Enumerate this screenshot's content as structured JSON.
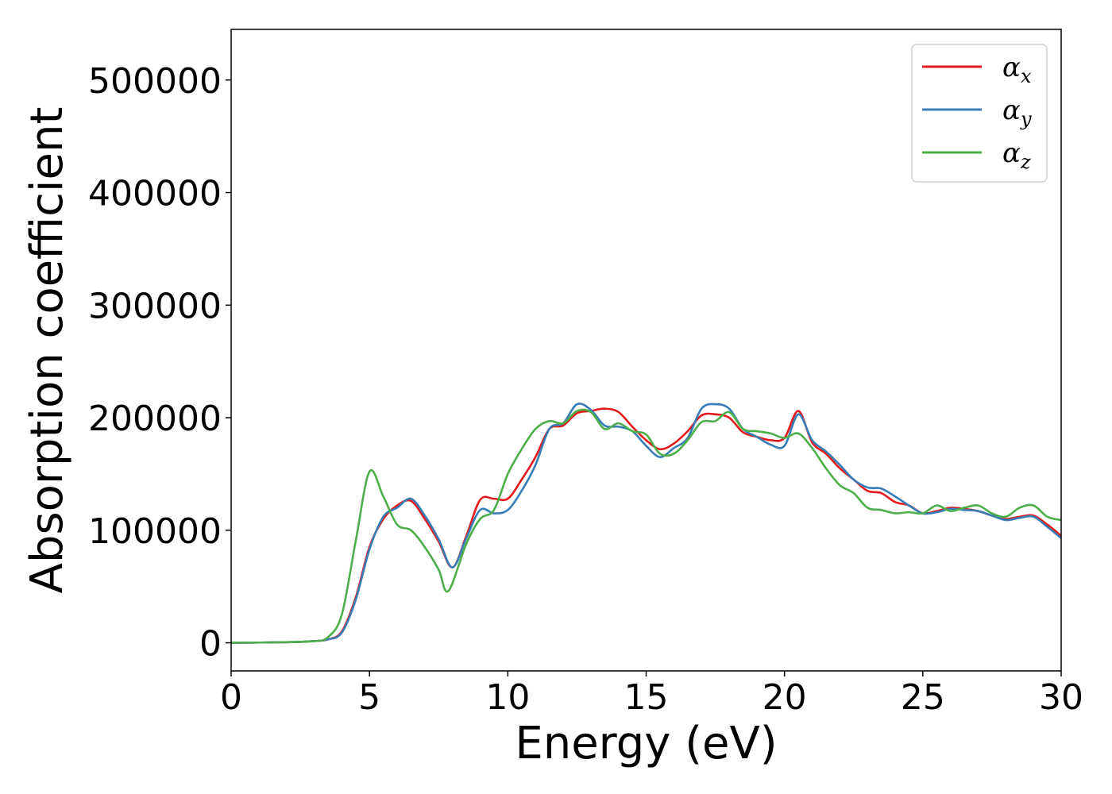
{
  "chart_data": {
    "type": "line",
    "xlabel": "Energy (eV)",
    "ylabel": "Absorption coefficient",
    "xlim": [
      0,
      30
    ],
    "ylim": [
      -25000,
      545000
    ],
    "xticks": [
      0,
      5,
      10,
      15,
      20,
      25,
      30
    ],
    "xtick_labels": [
      "0",
      "5",
      "10",
      "15",
      "20",
      "25",
      "30"
    ],
    "yticks": [
      0,
      100000,
      200000,
      300000,
      400000,
      500000
    ],
    "ytick_labels": [
      "0",
      "100000",
      "200000",
      "300000",
      "400000",
      "500000"
    ],
    "grid": false,
    "legend": {
      "position": "top-right"
    },
    "series": [
      {
        "name": "α",
        "subscript": "x",
        "color": "#e41a1c",
        "x": [
          0,
          2,
          3,
          3.5,
          4.0,
          4.5,
          5.0,
          5.5,
          6.0,
          6.5,
          7.0,
          7.5,
          8.0,
          8.5,
          9.0,
          9.5,
          10.0,
          10.5,
          11.0,
          11.5,
          12.0,
          12.5,
          13.0,
          13.5,
          14.0,
          14.5,
          15.0,
          15.5,
          16.0,
          16.5,
          17.0,
          17.5,
          18.0,
          18.5,
          19.0,
          19.5,
          20.0,
          20.5,
          21.0,
          21.5,
          22.0,
          22.5,
          23.0,
          23.5,
          24.0,
          24.5,
          25.0,
          25.5,
          26.0,
          26.5,
          27.0,
          27.5,
          28.0,
          28.5,
          29.0,
          29.5,
          30.0
        ],
        "y": [
          0,
          500,
          1500,
          3000,
          10000,
          40000,
          85000,
          110000,
          122000,
          126000,
          110000,
          90000,
          67000,
          95000,
          127000,
          128000,
          128000,
          145000,
          165000,
          190000,
          193000,
          204000,
          206000,
          208000,
          205000,
          192000,
          180000,
          172000,
          177000,
          188000,
          202000,
          203000,
          200000,
          187000,
          183000,
          180000,
          182000,
          206000,
          178000,
          168000,
          155000,
          145000,
          135000,
          133000,
          125000,
          122000,
          115000,
          117000,
          120000,
          119000,
          117000,
          113000,
          110000,
          112000,
          113000,
          105000,
          95000
        ]
      },
      {
        "name": "α",
        "subscript": "y",
        "color": "#377eb8",
        "x": [
          0,
          2,
          3,
          3.5,
          4.0,
          4.5,
          5.0,
          5.5,
          6.0,
          6.5,
          7.0,
          7.5,
          8.0,
          8.5,
          9.0,
          9.5,
          10.0,
          10.5,
          11.0,
          11.5,
          12.0,
          12.5,
          13.0,
          13.5,
          14.0,
          14.5,
          15.0,
          15.5,
          16.0,
          16.5,
          17.0,
          17.5,
          18.0,
          18.5,
          19.0,
          19.5,
          20.0,
          20.5,
          21.0,
          21.5,
          22.0,
          22.5,
          23.0,
          23.5,
          24.0,
          24.5,
          25.0,
          25.5,
          26.0,
          26.5,
          27.0,
          27.5,
          28.0,
          28.5,
          29.0,
          29.5,
          30.0
        ],
        "y": [
          0,
          500,
          1500,
          3000,
          9000,
          38000,
          83000,
          112000,
          120000,
          128000,
          113000,
          92000,
          67000,
          93000,
          118000,
          115000,
          118000,
          135000,
          158000,
          190000,
          195000,
          212000,
          207000,
          193000,
          192000,
          188000,
          175000,
          165000,
          173000,
          182000,
          208000,
          212000,
          208000,
          190000,
          183000,
          176000,
          175000,
          203000,
          180000,
          170000,
          158000,
          145000,
          138000,
          137000,
          130000,
          122000,
          115000,
          116000,
          119000,
          118000,
          117000,
          113000,
          109000,
          111000,
          112000,
          103000,
          93000
        ]
      },
      {
        "name": "α",
        "subscript": "z",
        "color": "#4daf4a",
        "x": [
          0,
          2,
          3,
          3.5,
          4.0,
          4.5,
          5.0,
          5.5,
          6.0,
          6.5,
          7.0,
          7.5,
          7.85,
          8.5,
          9.0,
          9.5,
          10.0,
          10.5,
          11.0,
          11.5,
          12.0,
          12.5,
          13.0,
          13.5,
          14.0,
          14.5,
          15.0,
          15.5,
          16.0,
          16.5,
          17.0,
          17.5,
          18.0,
          18.5,
          19.0,
          19.5,
          20.0,
          20.5,
          21.0,
          21.5,
          22.0,
          22.5,
          23.0,
          23.5,
          24.0,
          24.5,
          25.0,
          25.5,
          26.0,
          26.5,
          27.0,
          27.5,
          28.0,
          28.5,
          29.0,
          29.5,
          30.0
        ],
        "y": [
          0,
          500,
          1500,
          5000,
          25000,
          90000,
          152000,
          130000,
          105000,
          100000,
          85000,
          65000,
          46000,
          88000,
          110000,
          118000,
          150000,
          172000,
          190000,
          197000,
          195000,
          206000,
          205000,
          190000,
          195000,
          188000,
          185000,
          168000,
          168000,
          180000,
          196000,
          197000,
          205000,
          190000,
          188000,
          186000,
          182000,
          186000,
          173000,
          155000,
          140000,
          133000,
          120000,
          118000,
          115000,
          116000,
          115000,
          122000,
          117000,
          120000,
          122000,
          115000,
          112000,
          120000,
          122000,
          112000,
          109000
        ]
      }
    ]
  }
}
